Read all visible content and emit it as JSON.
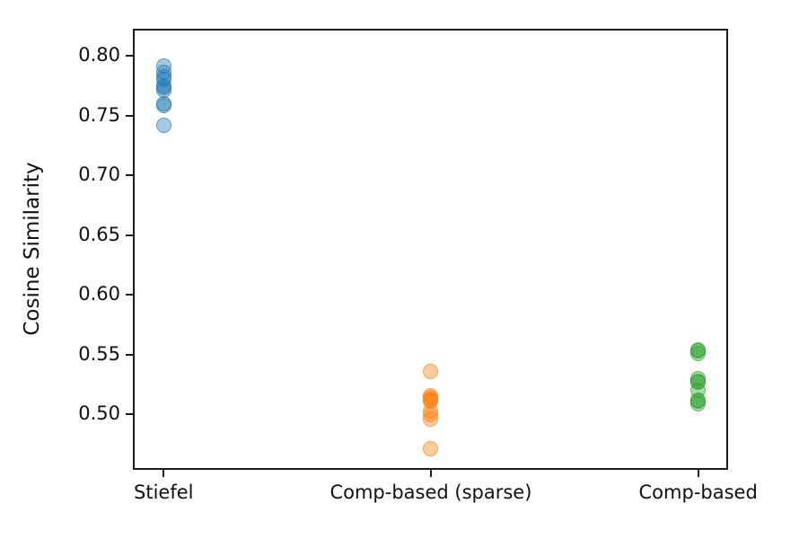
{
  "figure": {
    "background": "#ffffff",
    "text_color": "#111111",
    "axis_color": "#1c1c1c"
  },
  "chart_data": {
    "type": "scatter",
    "title": "",
    "xlabel": "",
    "ylabel": "Cosine Similarity",
    "categories": [
      "Stiefel",
      "Comp-based (sparse)",
      "Comp-based"
    ],
    "series": [
      {
        "name": "Stiefel",
        "color": "#1f77b4",
        "values": [
          0.791,
          0.786,
          0.782,
          0.78,
          0.775,
          0.773,
          0.771,
          0.76,
          0.758,
          0.742
        ]
      },
      {
        "name": "Comp-based (sparse)",
        "color": "#ff7f0e",
        "values": [
          0.536,
          0.516,
          0.514,
          0.513,
          0.512,
          0.511,
          0.503,
          0.5,
          0.496,
          0.471
        ]
      },
      {
        "name": "Comp-based",
        "color": "#2ca02c",
        "values": [
          0.554,
          0.553,
          0.551,
          0.53,
          0.528,
          0.527,
          0.52,
          0.512,
          0.511,
          0.509
        ]
      }
    ],
    "yticks": [
      0.8,
      0.75,
      0.7,
      0.65,
      0.6,
      0.55,
      0.5
    ],
    "ytick_labels": [
      "0.80",
      "0.75",
      "0.70",
      "0.65",
      "0.60",
      "0.55",
      "0.50"
    ],
    "ylim": [
      0.4537,
      0.8225
    ],
    "xlim": [
      -0.115,
      2.112
    ],
    "grid": false,
    "legend": "none"
  }
}
